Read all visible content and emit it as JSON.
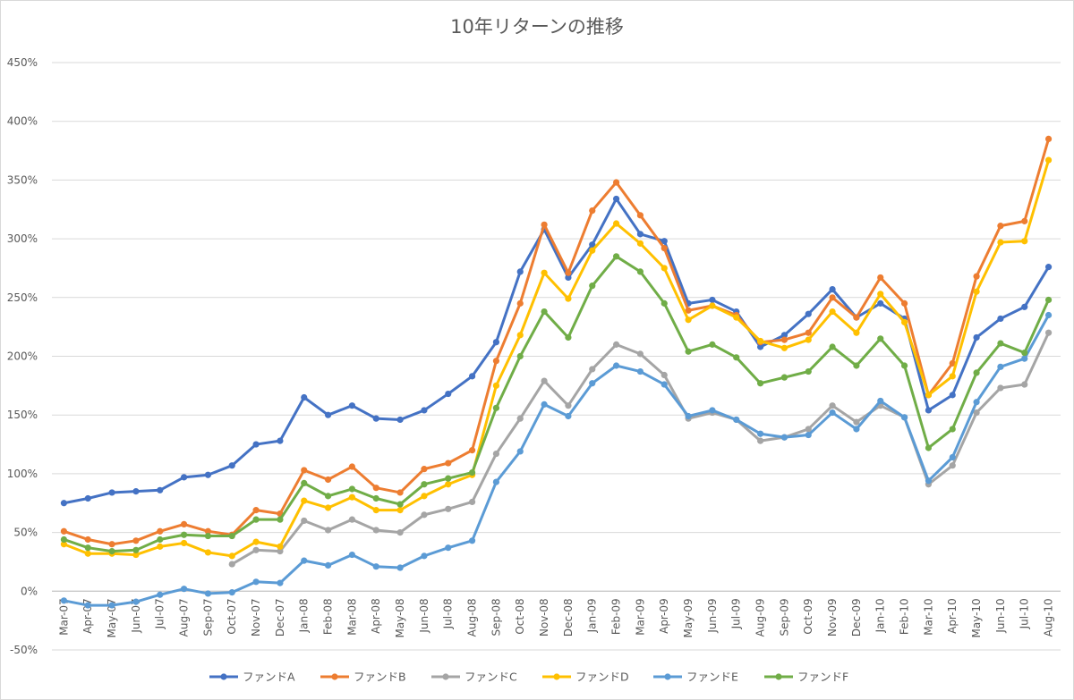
{
  "chart_data": {
    "type": "line",
    "title": "10年リターンの推移",
    "xlabel": "",
    "ylabel": "",
    "ylim": [
      -0.5,
      4.5
    ],
    "yticks": [
      -0.5,
      0,
      0.5,
      1,
      1.5,
      2,
      2.5,
      3,
      3.5,
      4,
      4.5
    ],
    "ytick_labels": [
      "-50%",
      "0%",
      "50%",
      "100%",
      "150%",
      "200%",
      "250%",
      "300%",
      "350%",
      "400%",
      "450%"
    ],
    "grid": true,
    "legend_position": "bottom",
    "categories": [
      "Mar-07",
      "Apr-07",
      "May-07",
      "Jun-07",
      "Jul-07",
      "Aug-07",
      "Sep-07",
      "Oct-07",
      "Nov-07",
      "Dec-07",
      "Jan-08",
      "Feb-08",
      "Mar-08",
      "Apr-08",
      "May-08",
      "Jun-08",
      "Jul-08",
      "Aug-08",
      "Sep-08",
      "Oct-08",
      "Nov-08",
      "Dec-08",
      "Jan-09",
      "Feb-09",
      "Mar-09",
      "Apr-09",
      "May-09",
      "Jun-09",
      "Jul-09",
      "Aug-09",
      "Sep-09",
      "Oct-09",
      "Nov-09",
      "Dec-09",
      "Jan-10",
      "Feb-10",
      "Mar-10",
      "Apr-10",
      "May-10",
      "Jun-10",
      "Jul-10",
      "Aug-10"
    ],
    "series": [
      {
        "name": "ファンドA",
        "color": "#4472C4",
        "values": [
          0.75,
          0.79,
          0.84,
          0.85,
          0.86,
          0.97,
          0.99,
          1.07,
          1.25,
          1.28,
          1.65,
          1.5,
          1.58,
          1.47,
          1.46,
          1.54,
          1.68,
          1.83,
          2.12,
          2.72,
          3.08,
          2.67,
          2.95,
          3.34,
          3.04,
          2.98,
          2.45,
          2.48,
          2.38,
          2.08,
          2.18,
          2.36,
          2.57,
          2.33,
          2.45,
          2.32,
          1.54,
          1.67,
          2.16,
          2.32,
          2.42,
          2.76
        ]
      },
      {
        "name": "ファンドB",
        "color": "#ED7D31",
        "values": [
          0.51,
          0.44,
          0.4,
          0.43,
          0.51,
          0.57,
          0.51,
          0.48,
          0.69,
          0.66,
          1.03,
          0.95,
          1.06,
          0.88,
          0.84,
          1.04,
          1.09,
          1.2,
          1.96,
          2.45,
          3.12,
          2.71,
          3.24,
          3.48,
          3.2,
          2.92,
          2.39,
          2.43,
          2.35,
          2.12,
          2.14,
          2.2,
          2.5,
          2.33,
          2.67,
          2.45,
          1.67,
          1.94,
          2.68,
          3.11,
          3.15,
          3.85
        ]
      },
      {
        "name": "ファンドC",
        "color": "#A5A5A5",
        "values": [
          null,
          null,
          null,
          null,
          null,
          null,
          null,
          0.23,
          0.35,
          0.34,
          0.6,
          0.52,
          0.61,
          0.52,
          0.5,
          0.65,
          0.7,
          0.76,
          1.17,
          1.47,
          1.79,
          1.58,
          1.89,
          2.1,
          2.02,
          1.84,
          1.47,
          1.52,
          1.46,
          1.28,
          1.31,
          1.38,
          1.58,
          1.44,
          1.58,
          1.48,
          0.91,
          1.07,
          1.52,
          1.73,
          1.76,
          2.2
        ]
      },
      {
        "name": "ファンドD",
        "color": "#FFC000",
        "values": [
          0.4,
          0.32,
          0.32,
          0.31,
          0.38,
          0.41,
          0.33,
          0.3,
          0.42,
          0.38,
          0.77,
          0.71,
          0.8,
          0.69,
          0.69,
          0.81,
          0.91,
          0.99,
          1.75,
          2.18,
          2.71,
          2.49,
          2.9,
          3.13,
          2.96,
          2.75,
          2.31,
          2.43,
          2.33,
          2.13,
          2.07,
          2.14,
          2.38,
          2.2,
          2.53,
          2.29,
          1.67,
          1.83,
          2.55,
          2.97,
          2.98,
          3.67
        ]
      },
      {
        "name": "ファンドE",
        "color": "#5B9BD5",
        "values": [
          -0.08,
          -0.12,
          -0.12,
          -0.09,
          -0.03,
          0.02,
          -0.02,
          -0.01,
          0.08,
          0.07,
          0.26,
          0.22,
          0.31,
          0.21,
          0.2,
          0.3,
          0.37,
          0.43,
          0.93,
          1.19,
          1.59,
          1.49,
          1.77,
          1.92,
          1.87,
          1.76,
          1.49,
          1.54,
          1.46,
          1.34,
          1.31,
          1.33,
          1.52,
          1.38,
          1.62,
          1.48,
          0.94,
          1.14,
          1.61,
          1.91,
          1.98,
          2.35
        ]
      },
      {
        "name": "ファンドF",
        "color": "#70AD47",
        "values": [
          0.44,
          0.37,
          0.34,
          0.35,
          0.44,
          0.48,
          0.47,
          0.47,
          0.61,
          0.61,
          0.92,
          0.81,
          0.87,
          0.79,
          0.74,
          0.91,
          0.96,
          1.01,
          1.56,
          2.0,
          2.38,
          2.16,
          2.6,
          2.85,
          2.72,
          2.45,
          2.04,
          2.1,
          1.99,
          1.77,
          1.82,
          1.87,
          2.08,
          1.92,
          2.15,
          1.92,
          1.22,
          1.38,
          1.86,
          2.11,
          2.03,
          2.48
        ]
      }
    ]
  }
}
